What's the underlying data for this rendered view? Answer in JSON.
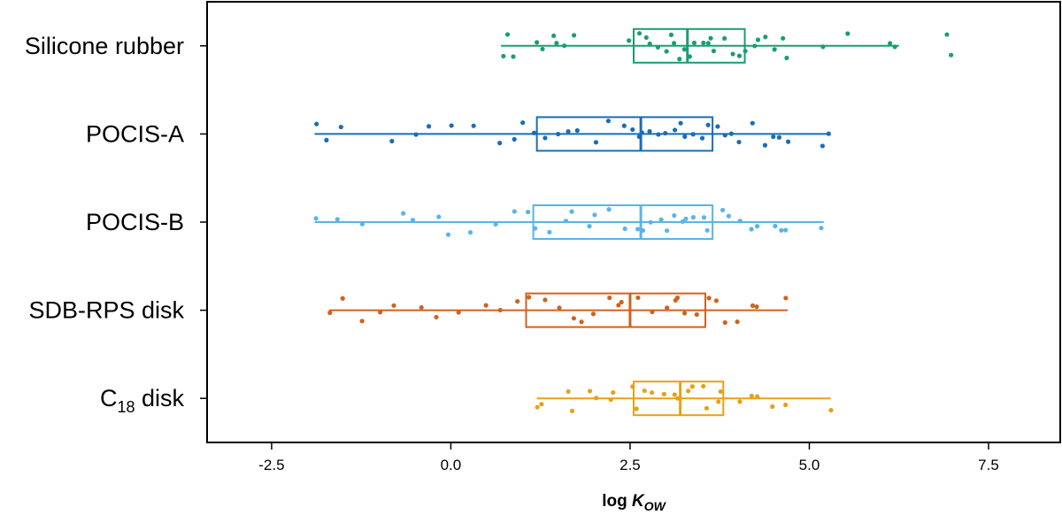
{
  "chart_data": {
    "type": "boxplot",
    "title": "",
    "xlabel": {
      "main": "log ",
      "italic": "K",
      "sub": "OW"
    },
    "ylabel": "",
    "xlim": [
      -3.4,
      8.5
    ],
    "xticks": [
      -2.5,
      0.0,
      2.5,
      5.0,
      7.5
    ],
    "xtick_labels": [
      "-2.5",
      "0.0",
      "2.5",
      "5.0",
      "7.5"
    ],
    "grid": false,
    "series": [
      {
        "name": "Silicone rubber",
        "label_main": "Silicone rubber",
        "label_sub": "",
        "color": "#1a9d72",
        "whisker_low": 0.7,
        "q1": 2.55,
        "median": 3.3,
        "q3": 4.1,
        "whisker_high": 6.25,
        "points": [
          0.7,
          0.8,
          0.9,
          1.2,
          1.3,
          1.4,
          1.5,
          1.6,
          1.7,
          2.5,
          2.6,
          2.7,
          2.8,
          2.9,
          3.0,
          3.1,
          3.15,
          3.2,
          3.25,
          3.35,
          3.4,
          3.5,
          3.6,
          3.65,
          3.7,
          3.8,
          3.9,
          4.0,
          4.1,
          4.2,
          4.3,
          4.4,
          4.5,
          4.6,
          4.7,
          5.2,
          5.5,
          6.1,
          6.2,
          6.9,
          7.0
        ]
      },
      {
        "name": "POCIS-A",
        "label_main": "POCIS-A",
        "label_sub": "",
        "color": "#1a6db4",
        "whisker_low": -1.9,
        "q1": 1.2,
        "median": 2.65,
        "q3": 3.65,
        "whisker_high": 5.3,
        "points": [
          -1.9,
          -1.7,
          -1.5,
          -0.8,
          -0.5,
          -0.3,
          0.0,
          0.3,
          0.7,
          0.9,
          1.0,
          1.2,
          1.3,
          1.5,
          1.6,
          1.8,
          2.0,
          2.2,
          2.4,
          2.5,
          2.6,
          2.7,
          2.8,
          2.9,
          3.0,
          3.1,
          3.2,
          3.3,
          3.4,
          3.5,
          3.6,
          3.7,
          3.8,
          3.9,
          4.0,
          4.2,
          4.4,
          4.5,
          4.6,
          4.7,
          5.2,
          5.3
        ]
      },
      {
        "name": "POCIS-B",
        "label_main": "POCIS-B",
        "label_sub": "",
        "color": "#5ab4e6",
        "whisker_low": -1.9,
        "q1": 1.15,
        "median": 2.65,
        "q3": 3.65,
        "whisker_high": 5.2,
        "points": [
          -1.9,
          -1.6,
          -1.2,
          -0.7,
          -0.5,
          -0.2,
          0.0,
          0.3,
          0.6,
          0.9,
          1.1,
          1.2,
          1.4,
          1.6,
          1.7,
          1.9,
          2.0,
          2.2,
          2.4,
          2.6,
          2.7,
          2.8,
          2.9,
          3.0,
          3.1,
          3.2,
          3.3,
          3.4,
          3.5,
          3.6,
          3.8,
          3.9,
          4.0,
          4.2,
          4.3,
          4.5,
          4.6,
          4.7,
          5.2
        ]
      },
      {
        "name": "SDB-RPS disk",
        "label_main": "SDB-RPS disk",
        "label_sub": "",
        "color": "#d0621f",
        "whisker_low": -1.7,
        "q1": 1.05,
        "median": 2.5,
        "q3": 3.55,
        "whisker_high": 4.7,
        "points": [
          -1.7,
          -1.5,
          -1.2,
          -1.0,
          -0.8,
          -0.4,
          -0.2,
          0.1,
          0.5,
          0.7,
          0.9,
          1.1,
          1.3,
          1.5,
          1.7,
          1.8,
          2.0,
          2.2,
          2.3,
          2.4,
          2.6,
          2.8,
          3.0,
          3.1,
          3.2,
          3.3,
          3.4,
          3.6,
          3.7,
          3.8,
          4.0,
          4.2,
          4.3,
          4.7
        ]
      },
      {
        "name": "C18 disk",
        "label_main": "C",
        "label_sub": "18",
        "label_tail": " disk",
        "color": "#e6a117",
        "whisker_low": 1.2,
        "q1": 2.55,
        "median": 3.2,
        "q3": 3.8,
        "whisker_high": 5.3,
        "points": [
          1.2,
          1.3,
          1.6,
          1.7,
          1.9,
          2.0,
          2.2,
          2.3,
          2.5,
          2.6,
          2.7,
          2.8,
          3.0,
          3.1,
          3.2,
          3.3,
          3.4,
          3.5,
          3.6,
          3.7,
          3.8,
          4.0,
          4.2,
          4.3,
          4.5,
          4.7,
          5.3
        ]
      }
    ]
  }
}
